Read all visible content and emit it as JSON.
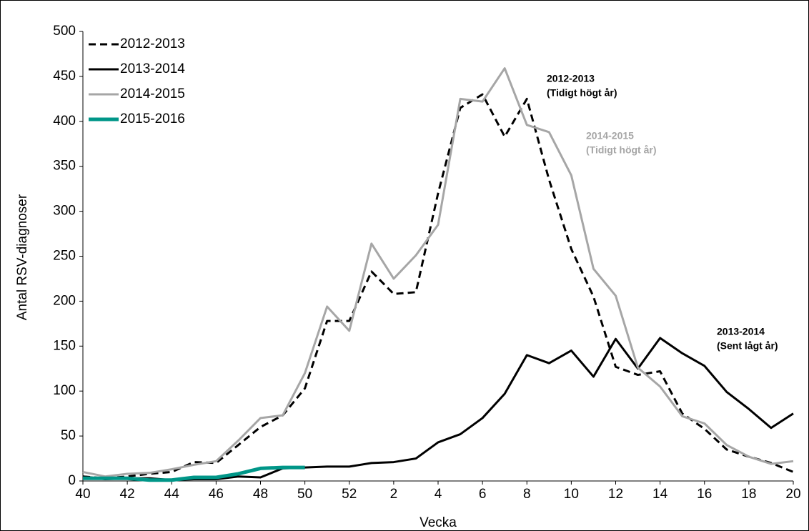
{
  "chart_data": {
    "type": "line",
    "x_label": "Vecka",
    "y_label": "Antal RSV-diagnoser",
    "categories": [
      "40",
      null,
      "42",
      null,
      "44",
      null,
      "46",
      null,
      "48",
      null,
      "50",
      null,
      "52",
      null,
      "2",
      null,
      "4",
      null,
      "6",
      null,
      "8",
      null,
      "10",
      null,
      "12",
      null,
      "14",
      null,
      "16",
      null,
      "18",
      null,
      "20"
    ],
    "ylim": [
      0,
      500
    ],
    "yticks": [
      0,
      50,
      100,
      150,
      200,
      250,
      300,
      350,
      400,
      450,
      500
    ],
    "grid": false,
    "legend": "top-left",
    "series": [
      {
        "name": "2012-2013",
        "color": "#000000",
        "dash": true,
        "values": [
          5,
          3,
          5,
          8,
          10,
          21,
          20,
          40,
          60,
          73,
          103,
          178,
          178,
          233,
          208,
          210,
          320,
          415,
          430,
          383,
          425,
          335,
          258,
          205,
          127,
          118,
          122,
          75,
          58,
          35,
          27,
          20,
          10
        ]
      },
      {
        "name": "2013-2014",
        "color": "#000000",
        "dash": false,
        "values": [
          5,
          2,
          3,
          3,
          1,
          2,
          2,
          5,
          4,
          14,
          15,
          16,
          16,
          20,
          21,
          25,
          43,
          52,
          70,
          97,
          140,
          131,
          145,
          116,
          158,
          125,
          159,
          142,
          128,
          99,
          80,
          59,
          75
        ]
      },
      {
        "name": "2014-2015",
        "color": "#a6a6a6",
        "dash": false,
        "values": [
          10,
          5,
          8,
          9,
          13,
          18,
          22,
          45,
          70,
          73,
          120,
          194,
          167,
          264,
          225,
          251,
          285,
          425,
          422,
          459,
          396,
          388,
          340,
          236,
          206,
          126,
          105,
          72,
          64,
          40,
          27,
          19,
          22
        ]
      },
      {
        "name": "2015-2016",
        "color": "#009688",
        "dash": false,
        "width": 5,
        "values": [
          3,
          3,
          3,
          1,
          1,
          4,
          4,
          8,
          14,
          15,
          15,
          null,
          null,
          null,
          null,
          null,
          null,
          null,
          null,
          null,
          null,
          null,
          null,
          null,
          null,
          null,
          null,
          null,
          null,
          null,
          null,
          null,
          null
        ]
      }
    ],
    "annotations": [
      {
        "lines": [
          "2012-2013",
          "(Tidigt högt år)"
        ],
        "color": "#000000"
      },
      {
        "lines": [
          "2014-2015",
          "(Tidigt högt år)"
        ],
        "color": "#a6a6a6"
      },
      {
        "lines": [
          "2013-2014",
          "(Sent lågt år)"
        ],
        "color": "#000000"
      }
    ]
  }
}
